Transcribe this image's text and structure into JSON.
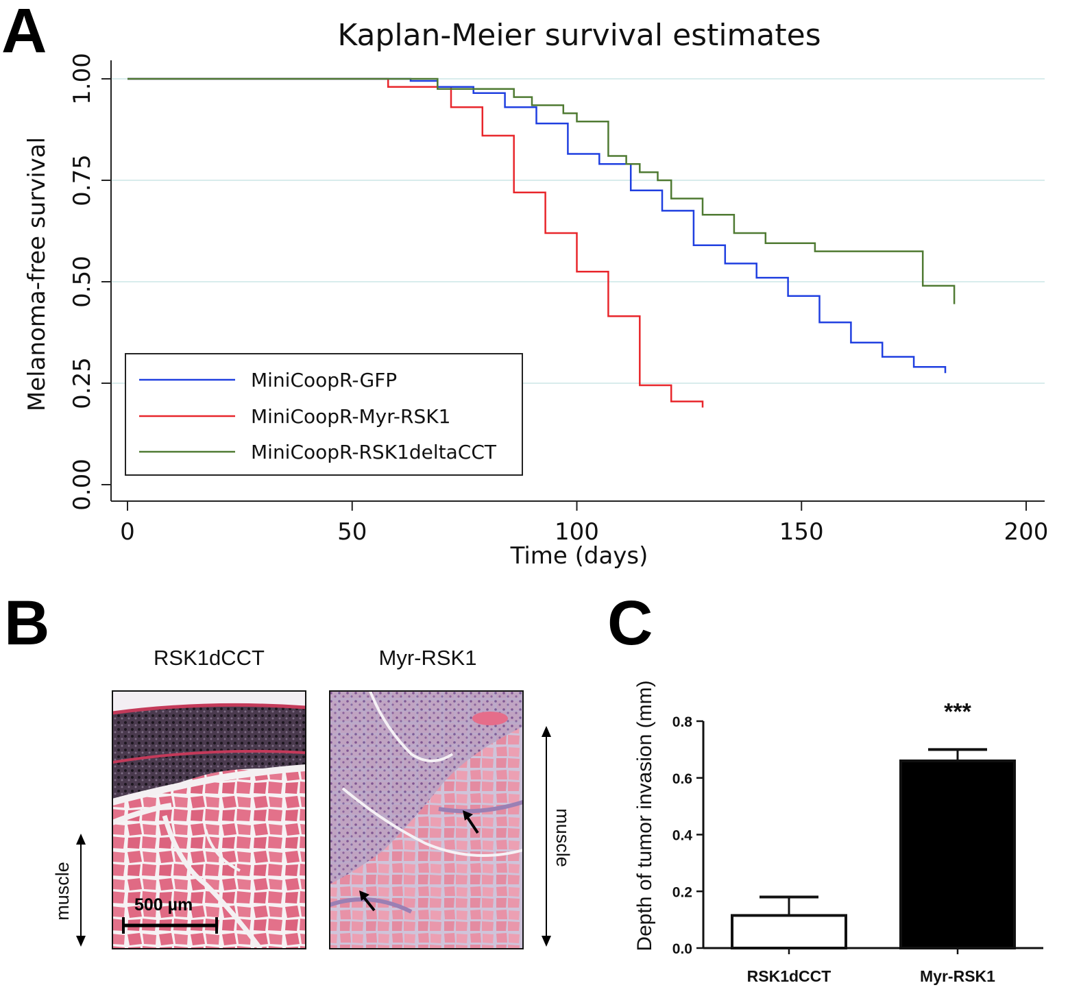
{
  "panels": {
    "a": "A",
    "b": "B",
    "c": "C"
  },
  "chart_data": [
    {
      "type": "line",
      "chart_kind": "kaplan-meier-step",
      "title": "Kaplan-Meier survival estimates",
      "xlabel": "Time (days)",
      "ylabel": "Melanoma-free survival",
      "xlim": [
        0,
        200
      ],
      "ylim": [
        0,
        1
      ],
      "xticks": [
        "0",
        "50",
        "100",
        "150",
        "200"
      ],
      "yticks": [
        "0.00",
        "0.25",
        "0.50",
        "0.75",
        "1.00"
      ],
      "grid": "horizontal",
      "legend_placement": "bottom-left",
      "series": [
        {
          "name": "MiniCoopR-GFP",
          "color": "#1f3fe0",
          "points": [
            [
              0,
              1.0
            ],
            [
              63,
              1.0
            ],
            [
              63,
              0.995
            ],
            [
              69,
              0.995
            ],
            [
              69,
              0.98
            ],
            [
              77,
              0.98
            ],
            [
              77,
              0.965
            ],
            [
              84,
              0.965
            ],
            [
              84,
              0.93
            ],
            [
              91,
              0.93
            ],
            [
              91,
              0.89
            ],
            [
              98,
              0.89
            ],
            [
              98,
              0.815
            ],
            [
              105,
              0.815
            ],
            [
              105,
              0.79
            ],
            [
              112,
              0.79
            ],
            [
              112,
              0.725
            ],
            [
              119,
              0.725
            ],
            [
              119,
              0.675
            ],
            [
              126,
              0.675
            ],
            [
              126,
              0.59
            ],
            [
              133,
              0.59
            ],
            [
              133,
              0.545
            ],
            [
              140,
              0.545
            ],
            [
              140,
              0.51
            ],
            [
              147,
              0.51
            ],
            [
              147,
              0.465
            ],
            [
              154,
              0.465
            ],
            [
              154,
              0.4
            ],
            [
              161,
              0.4
            ],
            [
              161,
              0.35
            ],
            [
              168,
              0.35
            ],
            [
              168,
              0.315
            ],
            [
              175,
              0.315
            ],
            [
              175,
              0.29
            ],
            [
              182,
              0.29
            ],
            [
              182,
              0.275
            ]
          ]
        },
        {
          "name": "MiniCoopR-Myr-RSK1",
          "color": "#e8262b",
          "points": [
            [
              0,
              1.0
            ],
            [
              58,
              1.0
            ],
            [
              58,
              0.98
            ],
            [
              72,
              0.98
            ],
            [
              72,
              0.93
            ],
            [
              79,
              0.93
            ],
            [
              79,
              0.86
            ],
            [
              86,
              0.86
            ],
            [
              86,
              0.72
            ],
            [
              93,
              0.72
            ],
            [
              93,
              0.62
            ],
            [
              100,
              0.62
            ],
            [
              100,
              0.525
            ],
            [
              107,
              0.525
            ],
            [
              107,
              0.415
            ],
            [
              114,
              0.415
            ],
            [
              114,
              0.245
            ],
            [
              121,
              0.245
            ],
            [
              121,
              0.205
            ],
            [
              128,
              0.205
            ],
            [
              128,
              0.19
            ]
          ]
        },
        {
          "name": "MiniCoopR-RSK1deltaCCT",
          "color": "#4f7a32",
          "points": [
            [
              0,
              1.0
            ],
            [
              69,
              1.0
            ],
            [
              69,
              0.975
            ],
            [
              86,
              0.975
            ],
            [
              86,
              0.955
            ],
            [
              90,
              0.955
            ],
            [
              90,
              0.935
            ],
            [
              97,
              0.935
            ],
            [
              97,
              0.915
            ],
            [
              100,
              0.915
            ],
            [
              100,
              0.895
            ],
            [
              107,
              0.895
            ],
            [
              107,
              0.81
            ],
            [
              111,
              0.81
            ],
            [
              111,
              0.79
            ],
            [
              114,
              0.79
            ],
            [
              114,
              0.77
            ],
            [
              118,
              0.77
            ],
            [
              118,
              0.75
            ],
            [
              121,
              0.75
            ],
            [
              121,
              0.705
            ],
            [
              128,
              0.705
            ],
            [
              128,
              0.665
            ],
            [
              135,
              0.665
            ],
            [
              135,
              0.62
            ],
            [
              142,
              0.62
            ],
            [
              142,
              0.595
            ],
            [
              153,
              0.595
            ],
            [
              153,
              0.575
            ],
            [
              177,
              0.575
            ],
            [
              177,
              0.49
            ],
            [
              184,
              0.49
            ],
            [
              184,
              0.445
            ]
          ]
        }
      ]
    },
    {
      "type": "bar",
      "categories": [
        "RSK1dCCT",
        "Myr-RSK1"
      ],
      "values": [
        0.115,
        0.66
      ],
      "error": [
        0.065,
        0.04
      ],
      "ylabel": "Depth of tumor invasion (mm)",
      "ylim": [
        0,
        0.8
      ],
      "yticks": [
        "0.0",
        "0.2",
        "0.4",
        "0.6",
        "0.8"
      ],
      "fills": [
        "#ffffff",
        "#000000"
      ],
      "annotation": "***"
    }
  ],
  "histology": {
    "left_title": "RSK1dCCT",
    "right_title": "Myr-RSK1",
    "muscle_label": "muscle",
    "scale_bar": "500 µm"
  }
}
